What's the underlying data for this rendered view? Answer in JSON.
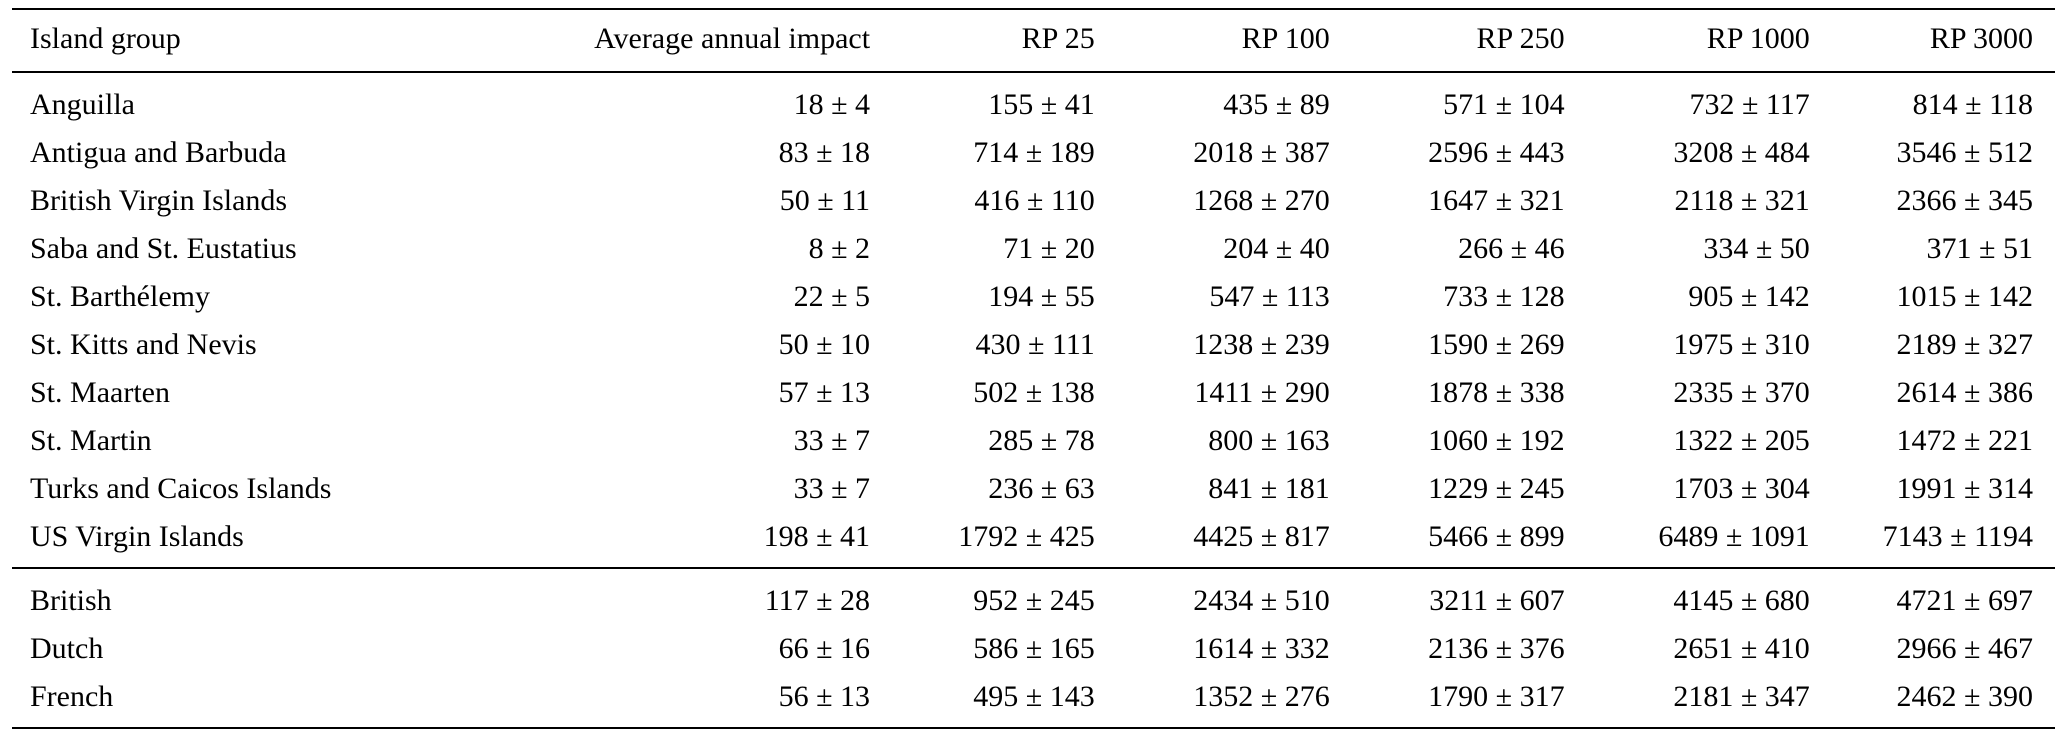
{
  "table": {
    "columns": [
      "Island group",
      "Average annual impact",
      "RP 25",
      "RP 100",
      "RP 250",
      "RP 1000",
      "RP 3000"
    ],
    "groups": [
      {
        "name": "island-groups",
        "rows": [
          {
            "label": "Anguilla",
            "values": [
              "18 ± 4",
              "155 ± 41",
              "435 ± 89",
              "571 ± 104",
              "732 ± 117",
              "814 ± 118"
            ]
          },
          {
            "label": "Antigua and Barbuda",
            "values": [
              "83 ± 18",
              "714 ± 189",
              "2018 ± 387",
              "2596 ± 443",
              "3208 ± 484",
              "3546 ± 512"
            ]
          },
          {
            "label": "British Virgin Islands",
            "values": [
              "50 ± 11",
              "416 ± 110",
              "1268 ± 270",
              "1647 ± 321",
              "2118 ± 321",
              "2366 ± 345"
            ]
          },
          {
            "label": "Saba and St. Eustatius",
            "values": [
              "8 ± 2",
              "71 ± 20",
              "204 ± 40",
              "266 ± 46",
              "334 ± 50",
              "371 ± 51"
            ]
          },
          {
            "label": "St. Barthélemy",
            "values": [
              "22 ± 5",
              "194 ± 55",
              "547 ± 113",
              "733 ± 128",
              "905 ± 142",
              "1015 ± 142"
            ]
          },
          {
            "label": "St. Kitts and Nevis",
            "values": [
              "50 ± 10",
              "430 ± 111",
              "1238 ± 239",
              "1590 ± 269",
              "1975 ± 310",
              "2189 ± 327"
            ]
          },
          {
            "label": "St. Maarten",
            "values": [
              "57 ± 13",
              "502 ± 138",
              "1411 ± 290",
              "1878 ± 338",
              "2335 ± 370",
              "2614 ± 386"
            ]
          },
          {
            "label": "St. Martin",
            "values": [
              "33 ± 7",
              "285 ± 78",
              "800 ± 163",
              "1060 ± 192",
              "1322 ± 205",
              "1472 ± 221"
            ]
          },
          {
            "label": "Turks and Caicos Islands",
            "values": [
              "33 ± 7",
              "236 ± 63",
              "841 ± 181",
              "1229 ± 245",
              "1703 ± 304",
              "1991 ± 314"
            ]
          },
          {
            "label": "US Virgin Islands",
            "values": [
              "198 ± 41",
              "1792 ± 425",
              "4425 ± 817",
              "5466 ± 899",
              "6489 ± 1091",
              "7143 ± 1194"
            ]
          }
        ]
      },
      {
        "name": "nation-groups",
        "rows": [
          {
            "label": "British",
            "values": [
              "117 ± 28",
              "952 ± 245",
              "2434 ± 510",
              "3211 ± 607",
              "4145 ± 680",
              "4721 ± 697"
            ]
          },
          {
            "label": "Dutch",
            "values": [
              "66 ± 16",
              "586 ± 165",
              "1614 ± 332",
              "2136 ± 376",
              "2651 ± 410",
              "2966 ± 467"
            ]
          },
          {
            "label": "French",
            "values": [
              "56 ± 13",
              "495 ± 143",
              "1352 ± 276",
              "1790 ± 317",
              "2181 ± 347",
              "2462 ± 390"
            ]
          }
        ]
      }
    ]
  }
}
